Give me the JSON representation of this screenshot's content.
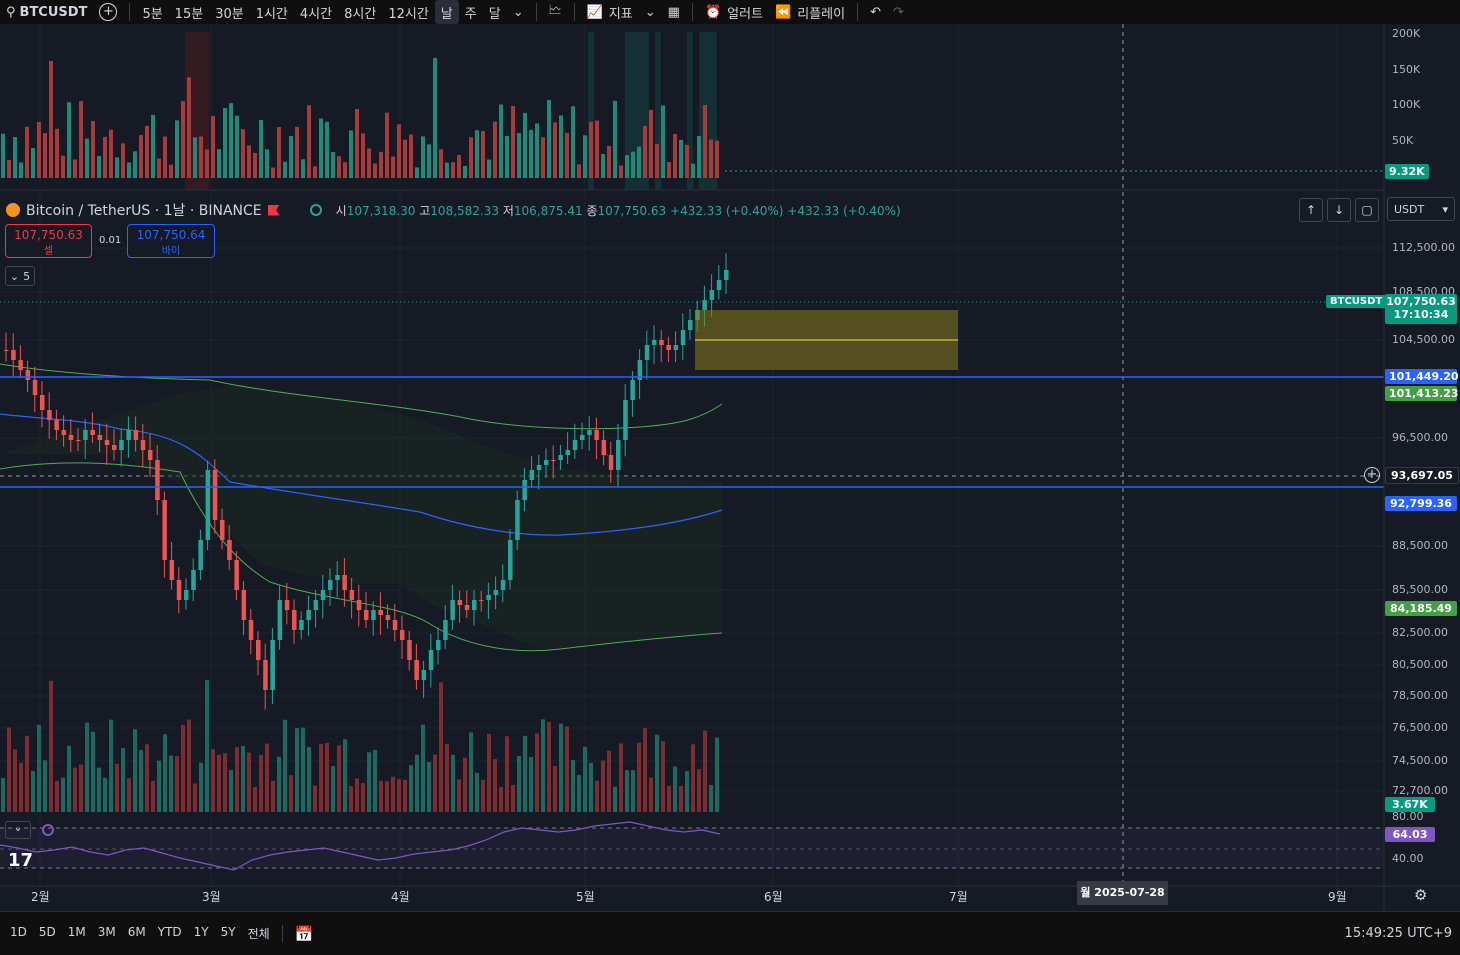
{
  "toolbar": {
    "symbol": "BTCUSDT",
    "intervals": [
      "5분",
      "15분",
      "30분",
      "1시간",
      "4시간",
      "8시간",
      "12시간",
      "날",
      "주",
      "달"
    ],
    "active_interval": "날",
    "indicators_label": "지표",
    "alert_label": "얼러트",
    "replay_label": "리플레이"
  },
  "legend": {
    "title": "Bitcoin / TetherUS · 1날 · BINANCE",
    "open_label": "시",
    "open": "107,318.30",
    "high_label": "고",
    "high": "108,582.33",
    "low_label": "저",
    "low": "106,875.41",
    "close_label": "종",
    "close": "107,750.63",
    "change": "+432.33 (+0.40%)",
    "change2": "+432.33 (+0.40%)"
  },
  "trade": {
    "sell_price": "107,750.63",
    "sell_label": "셀",
    "spread": "0.01",
    "buy_price": "107,750.64",
    "buy_label": "바이",
    "indicators_count": "5"
  },
  "currency": "USDT",
  "volume_axis": [
    "200K",
    "150K",
    "100K",
    "50K"
  ],
  "volume_badge": "9.32K",
  "price_axis": [
    "112,500.00",
    "108,500.00",
    "104,500.00",
    "96,500.00",
    "88,500.00",
    "85,500.00",
    "82,500.00",
    "80,500.00",
    "78,500.00",
    "76,500.00",
    "74,500.00",
    "72,700.00"
  ],
  "price_badges": {
    "symbol": "BTCUSDT",
    "last": "107,750.63",
    "countdown": "17:10:34",
    "blue_line": "101,449.20",
    "green_band": "101,413.23",
    "crosshair": "93,697.05",
    "blue_line2": "92,799.36",
    "green_lower": "84,185.49",
    "vol2": "3.67K"
  },
  "rsi": {
    "level_80": "80.00",
    "level_40": "40.00",
    "value": "64.03"
  },
  "time_axis": [
    "2월",
    "3월",
    "4월",
    "5월",
    "6월",
    "7월",
    "9월"
  ],
  "crosshair_date": "월 2025-07-28",
  "range_buttons": [
    "1D",
    "5D",
    "1M",
    "3M",
    "6M",
    "YTD",
    "1Y",
    "5Y",
    "전체"
  ],
  "clock": "15:49:25 UTC+9",
  "colors": {
    "up": "#26a69a",
    "down": "#ef5350",
    "blue": "#2962ff",
    "green_band": "#4caf50",
    "rsi": "#7e57c2"
  }
}
